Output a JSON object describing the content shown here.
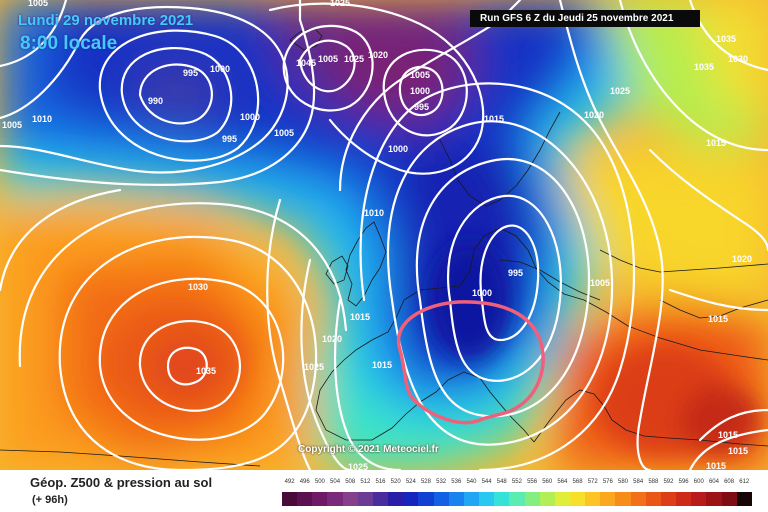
{
  "header": {
    "date_line": "Lundi 29 novembre 2021",
    "time_line": "8:00 locale",
    "run_info": "Run GFS 6 Z du Jeudi 25 novembre 2021"
  },
  "footer": {
    "product_title": "Géop. Z500 & pression au sol",
    "forecast_hour": "(+ 96h)",
    "copyright": "Copyright © 2021 Meteociel.fr"
  },
  "scale": {
    "labels": [
      "492",
      "496",
      "500",
      "504",
      "508",
      "512",
      "516",
      "520",
      "524",
      "528",
      "532",
      "536",
      "540",
      "544",
      "548",
      "552",
      "556",
      "560",
      "564",
      "568",
      "572",
      "576",
      "580",
      "584",
      "588",
      "592",
      "596",
      "600",
      "604",
      "608",
      "612"
    ],
    "colors": [
      "#4a0a3a",
      "#5c1250",
      "#6e1a66",
      "#7a2a7a",
      "#84408a",
      "#6a3c96",
      "#4a2c9c",
      "#2a1ea8",
      "#1426be",
      "#1040d4",
      "#1460e4",
      "#1a82ee",
      "#20a6f2",
      "#2ac8f0",
      "#34e2d8",
      "#5aecb0",
      "#84ee80",
      "#b4ee56",
      "#deee3a",
      "#f6e02c",
      "#fcc424",
      "#fca81e",
      "#f88c1a",
      "#f27018",
      "#ea5616",
      "#de3e16",
      "#ce2a18",
      "#b81c1a",
      "#9c1216",
      "#7e0c12",
      "#160606"
    ]
  },
  "pressure_labels": [
    "995",
    "1000",
    "990",
    "1010",
    "1005",
    "1000",
    "995",
    "1005",
    "1025",
    "1045",
    "1005",
    "1025",
    "1020",
    "1005",
    "1000",
    "995",
    "1025",
    "1020",
    "1015",
    "1000",
    "1010",
    "995",
    "1005",
    "1035",
    "1030",
    "1035",
    "1015",
    "1020",
    "1015",
    "1000",
    "1030",
    "1035",
    "1020",
    "1025",
    "1015",
    "1025",
    "1015",
    "1015",
    "1015",
    "1015",
    "1005"
  ]
}
